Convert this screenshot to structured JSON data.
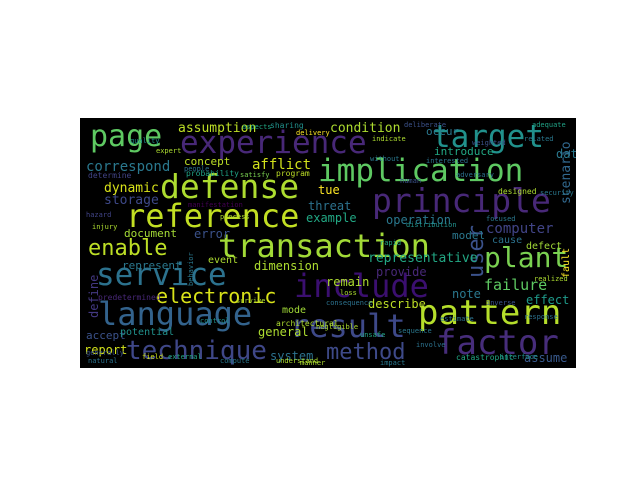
{
  "words": [
    {
      "text": "page",
      "color": "#5ec962"
    },
    {
      "text": "experience",
      "color": "#482878"
    },
    {
      "text": "target",
      "color": "#21918c"
    },
    {
      "text": "implication",
      "color": "#5ec962"
    },
    {
      "text": "defense",
      "color": "#addc30"
    },
    {
      "text": "principle",
      "color": "#482878"
    },
    {
      "text": "reference",
      "color": "#c2df23"
    },
    {
      "text": "transaction",
      "color": "#a2da37"
    },
    {
      "text": "service",
      "color": "#2c728e"
    },
    {
      "text": "enable",
      "color": "#bddf26"
    },
    {
      "text": "include",
      "color": "#3b0f70"
    },
    {
      "text": "plant",
      "color": "#7ad151"
    },
    {
      "text": "user",
      "color": "#3b528b"
    },
    {
      "text": "electronic",
      "color": "#d8e219"
    },
    {
      "text": "language",
      "color": "#33638d"
    },
    {
      "text": "result",
      "color": "#3e4989"
    },
    {
      "text": "pattern",
      "color": "#b5de2b"
    },
    {
      "text": "technique",
      "color": "#3f4788"
    },
    {
      "text": "method",
      "color": "#3e4a89"
    },
    {
      "text": "factor",
      "color": "#472d7b"
    },
    {
      "text": "assumption",
      "color": "#bddf26"
    },
    {
      "text": "condition",
      "color": "#addc30"
    },
    {
      "text": "occur",
      "color": "#2a788e"
    },
    {
      "text": "scenario",
      "color": "#31688e"
    },
    {
      "text": "afflict",
      "color": "#d2e21b"
    },
    {
      "text": "concept",
      "color": "#bddf26"
    },
    {
      "text": "correspond",
      "color": "#2a788e"
    },
    {
      "text": "dynamic",
      "color": "#d8e219"
    },
    {
      "text": "storage",
      "color": "#3e4989"
    },
    {
      "text": "tue",
      "color": "#fde725"
    },
    {
      "text": "example",
      "color": "#22a884"
    },
    {
      "text": "operation",
      "color": "#2a788e"
    },
    {
      "text": "computer",
      "color": "#414487"
    },
    {
      "text": "threat",
      "color": "#2c728e"
    },
    {
      "text": "document",
      "color": "#a5db36"
    },
    {
      "text": "error",
      "color": "#3b528b"
    },
    {
      "text": "dimension",
      "color": "#addc30"
    },
    {
      "text": "representative",
      "color": "#22a884"
    },
    {
      "text": "failure",
      "color": "#5ec962"
    },
    {
      "text": "defect",
      "color": "#a2da37"
    },
    {
      "text": "fault",
      "color": "#fde725"
    },
    {
      "text": "effect",
      "color": "#1f9a8a"
    },
    {
      "text": "note",
      "color": "#2a788e"
    },
    {
      "text": "provide",
      "color": "#482878"
    },
    {
      "text": "remain",
      "color": "#addc30"
    },
    {
      "text": "describe",
      "color": "#bddf26"
    },
    {
      "text": "general",
      "color": "#addc30"
    },
    {
      "text": "report",
      "color": "#d2e21b"
    },
    {
      "text": "system",
      "color": "#2c728e"
    },
    {
      "text": "assume",
      "color": "#38598c"
    },
    {
      "text": "define",
      "color": "#443983"
    },
    {
      "text": "date",
      "color": "#2a788e"
    },
    {
      "text": "introduce",
      "color": "#22a884"
    },
    {
      "text": "model",
      "color": "#2a788e"
    },
    {
      "text": "event",
      "color": "#addc30"
    },
    {
      "text": "represent",
      "color": "#2a788e"
    },
    {
      "text": "accept",
      "color": "#3b528b"
    },
    {
      "text": "mode",
      "color": "#a2da37"
    },
    {
      "text": "potential",
      "color": "#21918c"
    },
    {
      "text": "probability",
      "color": "#20a386"
    },
    {
      "text": "architectural",
      "color": "#addc30"
    },
    {
      "text": "cause",
      "color": "#2c728e"
    },
    {
      "text": "predetermined",
      "color": "#482878"
    },
    {
      "text": "consequence",
      "color": "#2c728e"
    },
    {
      "text": "catastrophic",
      "color": "#22a884"
    },
    {
      "text": "designed",
      "color": "#addc30"
    },
    {
      "text": "sharing",
      "color": "#21918c"
    },
    {
      "text": "people",
      "color": "#2c728e"
    },
    {
      "text": "program",
      "color": "#bddf26"
    },
    {
      "text": "determine",
      "color": "#414487"
    },
    {
      "text": "injury",
      "color": "#addc30"
    },
    {
      "text": "satisfy",
      "color": "#7ad151"
    },
    {
      "text": "manifestation",
      "color": "#440154"
    },
    {
      "text": "without",
      "color": "#2a788e"
    },
    {
      "text": "distribution",
      "color": "#21918c"
    },
    {
      "text": "inverse",
      "color": "#3b528b"
    },
    {
      "text": "focused",
      "color": "#2a788e"
    },
    {
      "text": "realized",
      "color": "#addc30"
    },
    {
      "text": "survive",
      "color": "#addc30"
    },
    {
      "text": "behavior",
      "color": "#2a788e"
    },
    {
      "text": "generally",
      "color": "#3b528b"
    },
    {
      "text": "natural",
      "color": "#2c728e"
    },
    {
      "text": "interested",
      "color": "#2c728e"
    },
    {
      "text": "negligible",
      "color": "#addc30"
    },
    {
      "text": "delivery",
      "color": "#fde725"
    },
    {
      "text": "involve",
      "color": "#2c728e"
    },
    {
      "text": "field",
      "color": "#d2e21b"
    },
    {
      "text": "interface",
      "color": "#21918c"
    },
    {
      "text": "manner",
      "color": "#addc30"
    },
    {
      "text": "understand",
      "color": "#addc30"
    },
    {
      "text": "compute",
      "color": "#2a788e"
    },
    {
      "text": "unsafe",
      "color": "#22a884"
    },
    {
      "text": "sequence",
      "color": "#2a788e"
    },
    {
      "text": "adequate",
      "color": "#20a386"
    },
    {
      "text": "deliberate",
      "color": "#3b528b"
    },
    {
      "text": "quality",
      "color": "#21918c"
    },
    {
      "text": "related",
      "color": "#2a788e"
    },
    {
      "text": "indicate",
      "color": "#addc30"
    },
    {
      "text": "hazard",
      "color": "#414487"
    },
    {
      "text": "adversary",
      "color": "#2c728e"
    },
    {
      "text": "rapid",
      "color": "#22a884"
    },
    {
      "text": "process",
      "color": "#addc30"
    },
    {
      "text": "security",
      "color": "#2a788e"
    },
    {
      "text": "human",
      "color": "#3b528b"
    },
    {
      "text": "external",
      "color": "#22a884"
    },
    {
      "text": "loss",
      "color": "#addc30"
    },
    {
      "text": "response",
      "color": "#2c728e"
    },
    {
      "text": "control",
      "color": "#21918c"
    },
    {
      "text": "impact",
      "color": "#2a788e"
    },
    {
      "text": "expert",
      "color": "#addc30"
    },
    {
      "text": "aspects",
      "color": "#22a884"
    },
    {
      "text": "estimate",
      "color": "#2c728e"
    },
    {
      "text": "weighted",
      "color": "#3b528b"
    }
  ]
}
